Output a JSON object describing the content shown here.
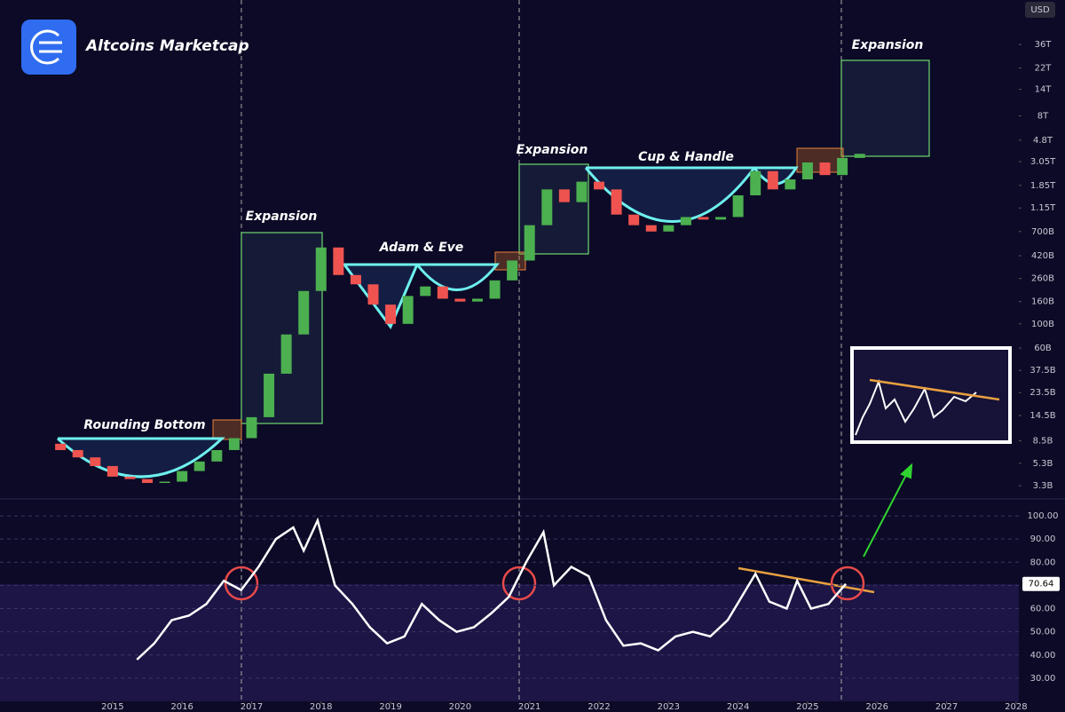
{
  "header": {
    "title": "Altcoins Marketcap",
    "currency": "USD"
  },
  "annotations": [
    "Rounding Bottom",
    "Expansion",
    "Adam & Eve",
    "Expansion",
    "Cup & Handle",
    "Expansion"
  ],
  "chart_data": [
    {
      "type": "candlestick",
      "log_scale": true,
      "up_color": "#4caf50",
      "down_color": "#ef5350",
      "x": [
        2014.25,
        2014.5,
        2014.75,
        2015.0,
        2015.25,
        2015.5,
        2015.75,
        2016.0,
        2016.25,
        2016.5,
        2016.75,
        2017.0,
        2017.25,
        2017.5,
        2017.75,
        2018.0,
        2018.25,
        2018.5,
        2018.75,
        2019.0,
        2019.25,
        2019.5,
        2019.75,
        2020.0,
        2020.25,
        2020.5,
        2020.75,
        2021.0,
        2021.25,
        2021.5,
        2021.75,
        2022.0,
        2022.25,
        2022.5,
        2022.75,
        2023.0,
        2023.25,
        2023.5,
        2023.75,
        2024.0,
        2024.25,
        2024.5,
        2024.75,
        2025.0,
        2025.25,
        2025.5,
        2025.75
      ],
      "open": [
        8,
        7,
        6,
        5,
        4,
        3.8,
        3.5,
        3.6,
        4.5,
        5.5,
        7,
        9,
        14,
        35,
        80,
        200,
        500,
        280,
        230,
        150,
        100,
        180,
        220,
        170,
        160,
        170,
        250,
        380,
        800,
        1700,
        1300,
        2000,
        1700,
        1000,
        800,
        700,
        800,
        950,
        900,
        950,
        1500,
        2500,
        1700,
        2100,
        3000,
        2300,
        3300
      ],
      "close": [
        7,
        6,
        5,
        4,
        3.8,
        3.5,
        3.6,
        4.5,
        5.5,
        7,
        9,
        14,
        35,
        80,
        200,
        500,
        280,
        230,
        150,
        100,
        180,
        220,
        170,
        160,
        170,
        250,
        380,
        800,
        1700,
        1300,
        2000,
        1700,
        1000,
        800,
        700,
        800,
        950,
        900,
        950,
        1500,
        2500,
        1700,
        2100,
        3000,
        2300,
        3300,
        3600
      ],
      "xlim": [
        2013.38,
        2028.04
      ],
      "ylim": [
        2.5,
        92000
      ],
      "yticks": [
        {
          "value": 3.3,
          "label": "3.3B"
        },
        {
          "value": 5.3,
          "label": "5.3B"
        },
        {
          "value": 8.5,
          "label": "8.5B"
        },
        {
          "value": 14.5,
          "label": "14.5B"
        },
        {
          "value": 23.5,
          "label": "23.5B"
        },
        {
          "value": 37.5,
          "label": "37.5B"
        },
        {
          "value": 60,
          "label": "60B"
        },
        {
          "value": 100,
          "label": "100B"
        },
        {
          "value": 160,
          "label": "160B"
        },
        {
          "value": 260,
          "label": "260B"
        },
        {
          "value": 420,
          "label": "420B"
        },
        {
          "value": 700,
          "label": "700B"
        },
        {
          "value": 1150,
          "label": "1.15T"
        },
        {
          "value": 1850,
          "label": "1.85T"
        },
        {
          "value": 3050,
          "label": "3.05T"
        },
        {
          "value": 4800,
          "label": "4.8T"
        },
        {
          "value": 8000,
          "label": "8T"
        },
        {
          "value": 14000,
          "label": "14T"
        },
        {
          "value": 22000,
          "label": "22T"
        },
        {
          "value": 36000,
          "label": "36T"
        }
      ]
    },
    {
      "type": "line",
      "color": "#ffffff",
      "x": [
        2015.35,
        2015.6,
        2015.85,
        2016.1,
        2016.35,
        2016.6,
        2016.85,
        2017.1,
        2017.35,
        2017.6,
        2017.75,
        2017.95,
        2018.2,
        2018.45,
        2018.7,
        2018.95,
        2019.2,
        2019.45,
        2019.7,
        2019.95,
        2020.2,
        2020.45,
        2020.7,
        2020.95,
        2021.2,
        2021.35,
        2021.6,
        2021.85,
        2022.1,
        2022.35,
        2022.6,
        2022.85,
        2023.1,
        2023.35,
        2023.6,
        2023.85,
        2024.05,
        2024.25,
        2024.45,
        2024.7,
        2024.85,
        2025.05,
        2025.3,
        2025.55
      ],
      "values": [
        38,
        45,
        55,
        57,
        62,
        72,
        68,
        78,
        90,
        95,
        85,
        98,
        70,
        62,
        52,
        45,
        48,
        62,
        55,
        50,
        52,
        58,
        65,
        80,
        93,
        70,
        78,
        74,
        55,
        44,
        45,
        42,
        48,
        50,
        48,
        55,
        65,
        75,
        63,
        60,
        72,
        60,
        62,
        70.64
      ],
      "current_value": 70.64,
      "xlim": [
        2013.38,
        2028.04
      ],
      "ylim": [
        20,
        107.3
      ],
      "yticks": [
        {
          "value": 30,
          "label": "30.00"
        },
        {
          "value": 40,
          "label": "40.00"
        },
        {
          "value": 50,
          "label": "50.00"
        },
        {
          "value": 60,
          "label": "60.00"
        },
        {
          "value": 70,
          "label": "70.00"
        },
        {
          "value": 80,
          "label": "80.00"
        },
        {
          "value": 90,
          "label": "90.00"
        },
        {
          "value": 100,
          "label": "100.00"
        }
      ],
      "xticks": [
        2015,
        2016,
        2017,
        2018,
        2019,
        2020,
        2021,
        2022,
        2023,
        2024,
        2025,
        2026,
        2027,
        2028
      ]
    }
  ]
}
